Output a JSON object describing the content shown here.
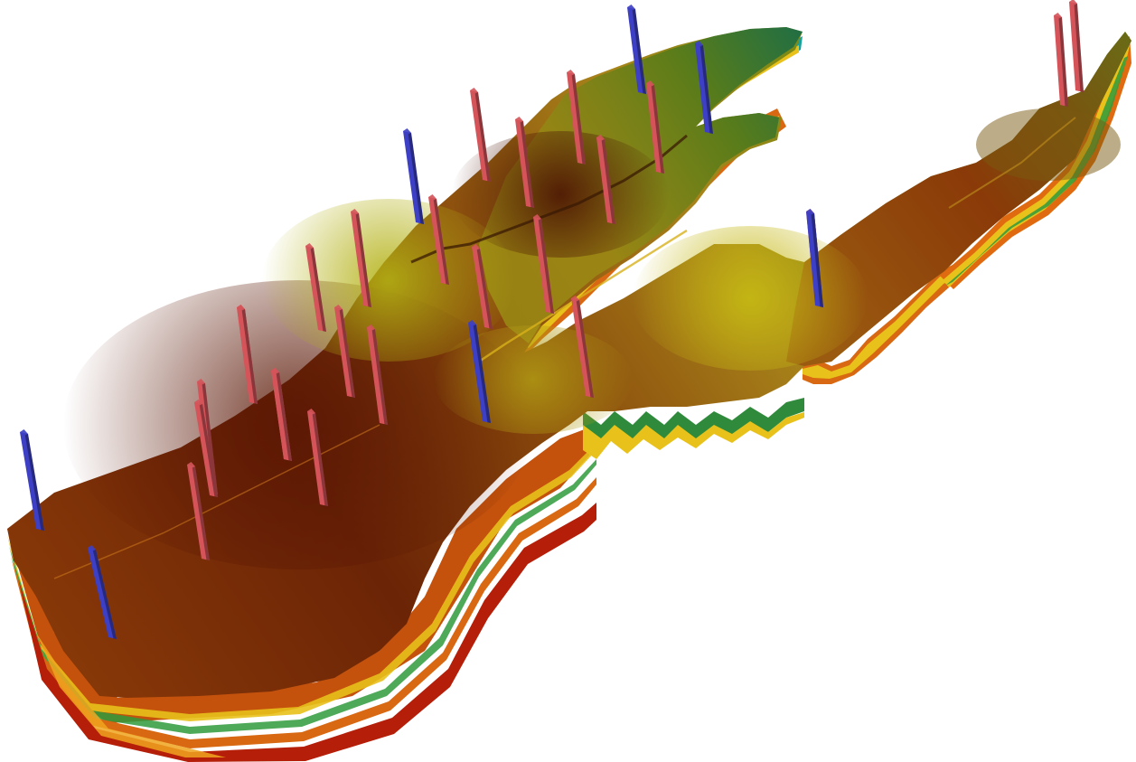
{
  "scene": {
    "kind": "3d-reservoir-grid-model",
    "colors": {
      "background": "#ffffff",
      "surface_high": "#c9c214",
      "surface_mid": "#9a5a12",
      "surface_low": "#5a1a05",
      "upper_green": "#1e7a3a",
      "upper_teal": "#1aa59a",
      "layer_yellow": "#e8c21a",
      "layer_orange": "#e06a10",
      "layer_red": "#b51e08",
      "layer_green": "#3aa03a",
      "layer_teal": "#1aa09a",
      "producer_well": "#d4545a",
      "injector_well": "#3d3fc4"
    },
    "wells": [
      {
        "type": "injector"
      },
      {
        "type": "producer"
      },
      {
        "type": "producer"
      },
      {
        "type": "producer"
      },
      {
        "type": "producer"
      },
      {
        "type": "producer"
      },
      {
        "type": "producer"
      },
      {
        "type": "producer"
      },
      {
        "type": "producer"
      },
      {
        "type": "producer"
      },
      {
        "type": "producer"
      },
      {
        "type": "producer"
      },
      {
        "type": "producer"
      },
      {
        "type": "producer"
      },
      {
        "type": "injector"
      },
      {
        "type": "producer"
      },
      {
        "type": "producer"
      },
      {
        "type": "injector"
      },
      {
        "type": "producer"
      },
      {
        "type": "producer"
      },
      {
        "type": "producer"
      },
      {
        "type": "producer"
      },
      {
        "type": "producer"
      },
      {
        "type": "producer"
      },
      {
        "type": "producer"
      },
      {
        "type": "injector"
      },
      {
        "type": "injector"
      },
      {
        "type": "injector"
      },
      {
        "type": "injector"
      },
      {
        "type": "producer"
      },
      {
        "type": "producer"
      }
    ]
  }
}
